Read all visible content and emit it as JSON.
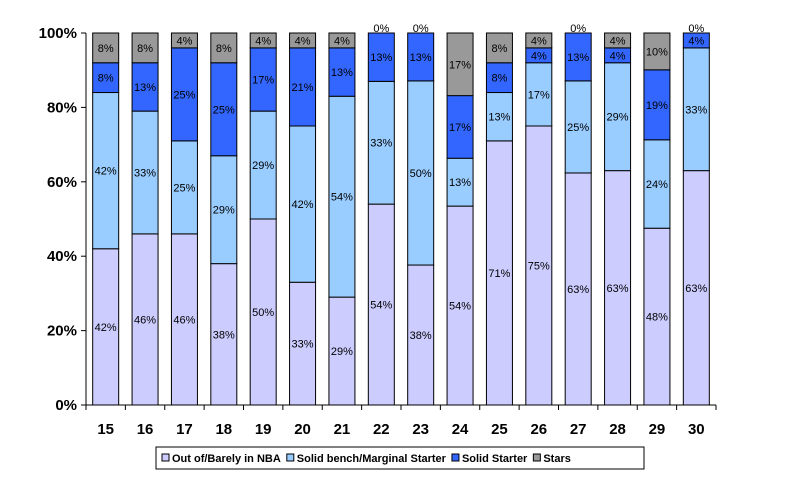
{
  "chart_data": {
    "type": "bar",
    "stacked": true,
    "percent_stacked": true,
    "categories": [
      "15",
      "16",
      "17",
      "18",
      "19",
      "20",
      "21",
      "22",
      "23",
      "24",
      "25",
      "26",
      "27",
      "28",
      "29",
      "30"
    ],
    "series": [
      {
        "name": "Out of/Barely in NBA",
        "color": "#ccccff",
        "values": [
          42,
          46,
          46,
          38,
          50,
          33,
          29,
          54,
          38,
          54,
          71,
          75,
          63,
          63,
          48,
          63
        ]
      },
      {
        "name": "Solid bench/Marginal Starter",
        "color": "#99ccff",
        "values": [
          42,
          33,
          25,
          29,
          29,
          42,
          54,
          33,
          50,
          13,
          13,
          17,
          25,
          29,
          24,
          33
        ]
      },
      {
        "name": "Solid Starter",
        "color": "#3366ff",
        "values": [
          8,
          13,
          25,
          25,
          17,
          21,
          13,
          13,
          13,
          17,
          8,
          4,
          13,
          4,
          19,
          4
        ]
      },
      {
        "name": "Stars",
        "color": "#999999",
        "values": [
          8,
          8,
          4,
          8,
          4,
          4,
          4,
          0,
          0,
          17,
          8,
          4,
          0,
          4,
          10,
          0
        ]
      }
    ],
    "ylim": [
      0,
      100
    ],
    "yticks": [
      "0%",
      "20%",
      "40%",
      "60%",
      "80%",
      "100%"
    ],
    "yticks_values": [
      0,
      20,
      40,
      60,
      80,
      100
    ],
    "grid": false,
    "legend": "bottom",
    "label_suffix": "%"
  }
}
